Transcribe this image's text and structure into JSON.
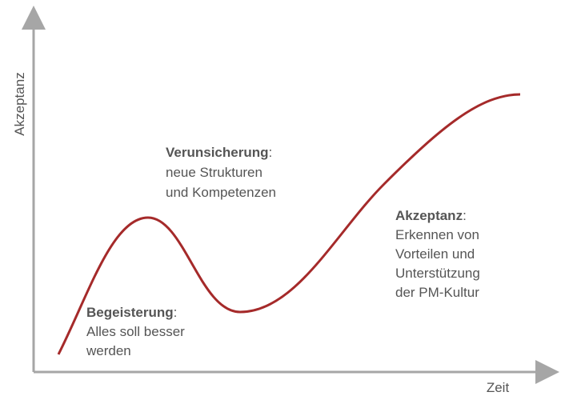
{
  "axes": {
    "y_label": "Akzeptanz",
    "x_label": "Zeit"
  },
  "annotations": [
    {
      "title": "Begeisterung",
      "suffix": ":",
      "lines": [
        "Alles soll besser",
        "werden"
      ]
    },
    {
      "title": "Verunsicherung",
      "suffix": ":",
      "lines": [
        "neue Strukturen",
        "und Kompetenzen"
      ]
    },
    {
      "title": "Akzeptanz",
      "suffix": ":",
      "lines": [
        "Erkennen von",
        "Vorteilen und",
        "Unterstützung",
        "der PM-Kultur"
      ]
    }
  ]
}
